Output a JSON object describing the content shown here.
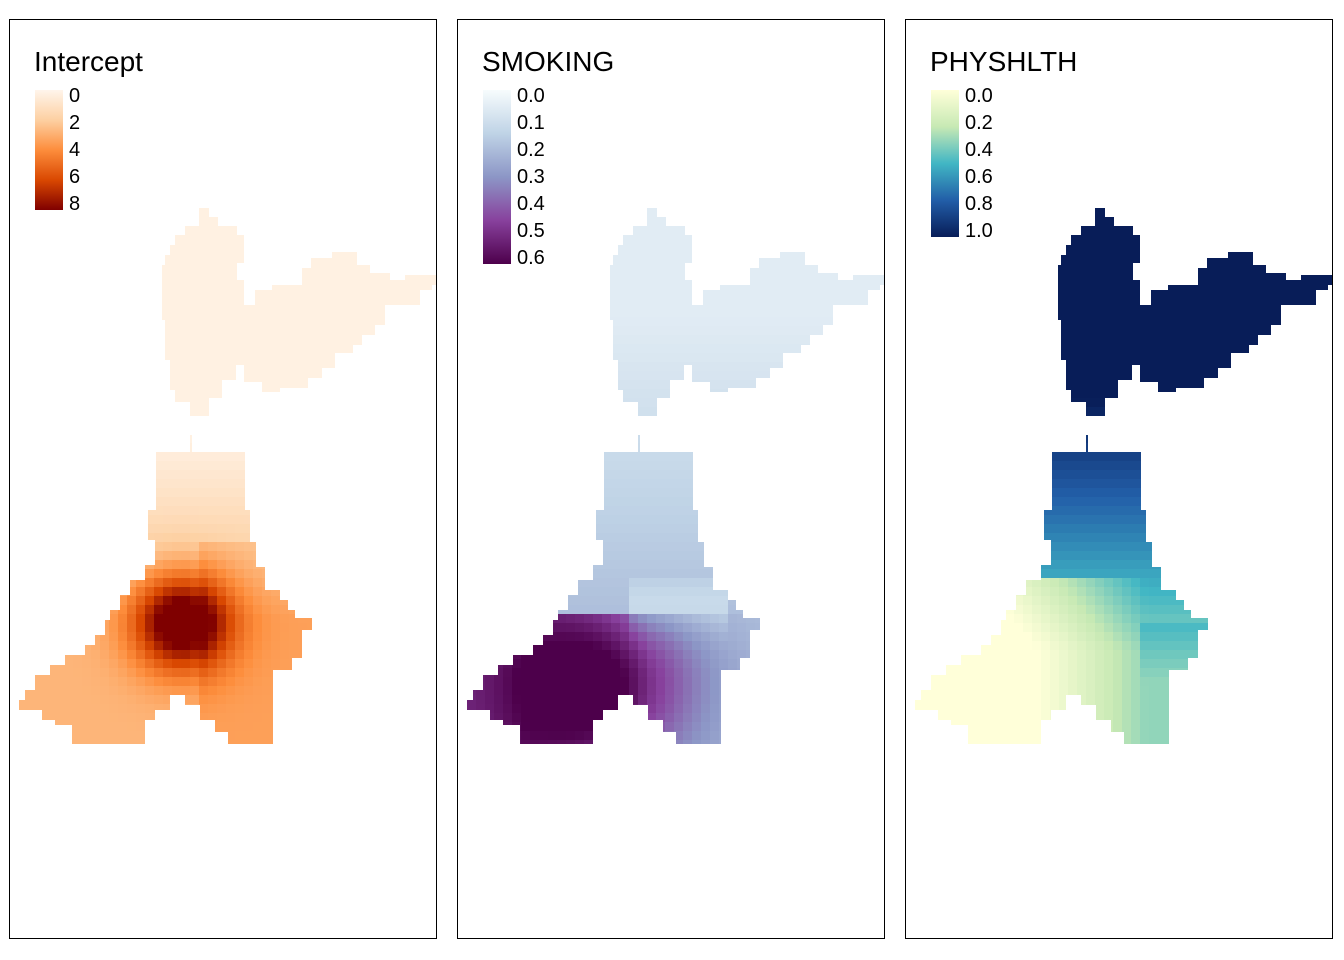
{
  "panels": [
    {
      "title": "Intercept",
      "ticks": [
        "0",
        "2",
        "4",
        "6",
        "8"
      ],
      "range": [
        0,
        8
      ],
      "palette": [
        "#fff5eb",
        "#fdd0a2",
        "#fd8d3c",
        "#d94801",
        "#7f0000"
      ],
      "palette_name": "OrRd"
    },
    {
      "title": "SMOKING",
      "ticks": [
        "0.0",
        "0.1",
        "0.2",
        "0.3",
        "0.4",
        "0.5",
        "0.6"
      ],
      "range": [
        0,
        0.6
      ],
      "palette": [
        "#f7fcfd",
        "#bfd3e6",
        "#8c96c6",
        "#88419d",
        "#4d004b"
      ],
      "palette_name": "BuPu"
    },
    {
      "title": "PHYSHLTH",
      "ticks": [
        "0.0",
        "0.2",
        "0.4",
        "0.6",
        "0.8",
        "1.0"
      ],
      "range": [
        0,
        1
      ],
      "palette": [
        "#ffffd9",
        "#c7e9b4",
        "#41b6c4",
        "#225ea8",
        "#081d58"
      ],
      "palette_name": "YlGnBu"
    }
  ]
}
